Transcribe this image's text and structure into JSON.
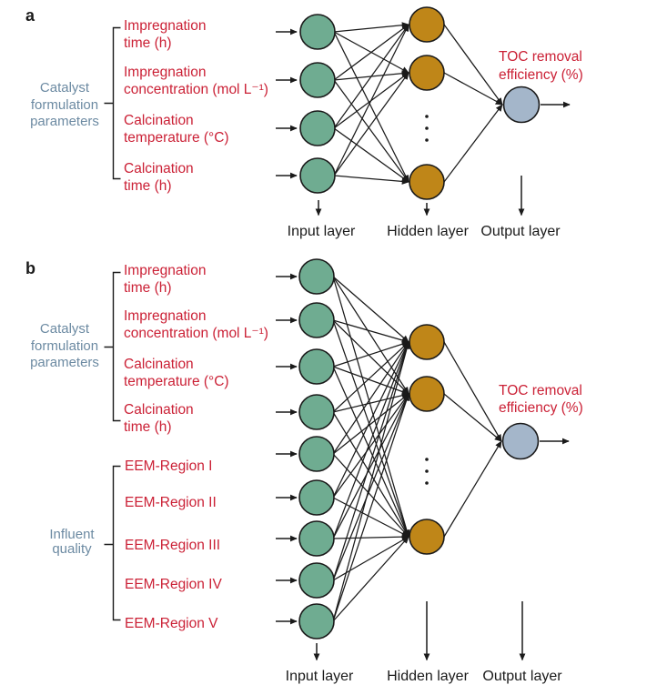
{
  "colors": {
    "input_node": "#6fac91",
    "hidden_node": "#bf8618",
    "output_node": "#a4b6ca",
    "label_red": "#cb2136",
    "group_label_blue": "#6c8aa2",
    "text_black": "#1a1a1a",
    "line": "#1a1a1a"
  },
  "panel_a": {
    "label": "a",
    "group": {
      "lines": [
        "Catalyst",
        "formulation",
        "parameters"
      ]
    },
    "inputs": [
      {
        "l1": "Impregnation",
        "l2": "time (h)"
      },
      {
        "l1": "Impregnation",
        "l2": "concentration (mol L⁻¹)"
      },
      {
        "l1": "Calcination",
        "l2": "temperature (°C)"
      },
      {
        "l1": "Calcination",
        "l2": "time (h)"
      }
    ],
    "output": {
      "l1": "TOC removal",
      "l2": "efficiency (%)"
    },
    "layers": {
      "input": "Input layer",
      "hidden": "Hidden layer",
      "output": "Output layer"
    }
  },
  "panel_b": {
    "label": "b",
    "group_catalyst": {
      "lines": [
        "Catalyst",
        "formulation",
        "parameters"
      ]
    },
    "group_influent": {
      "lines": [
        "Influent",
        "quality"
      ]
    },
    "inputs_catalyst": [
      {
        "l1": "Impregnation",
        "l2": "time (h)"
      },
      {
        "l1": "Impregnation",
        "l2": "concentration (mol L⁻¹)"
      },
      {
        "l1": "Calcination",
        "l2": "temperature (°C)"
      },
      {
        "l1": "Calcination",
        "l2": "time (h)"
      }
    ],
    "inputs_influent": [
      "EEM-Region I",
      "EEM-Region II",
      "EEM-Region III",
      "EEM-Region IV",
      "EEM-Region V"
    ],
    "output": {
      "l1": "TOC removal",
      "l2": "efficiency (%)"
    },
    "layers": {
      "input": "Input layer",
      "hidden": "Hidden layer",
      "output": "Output layer"
    }
  }
}
